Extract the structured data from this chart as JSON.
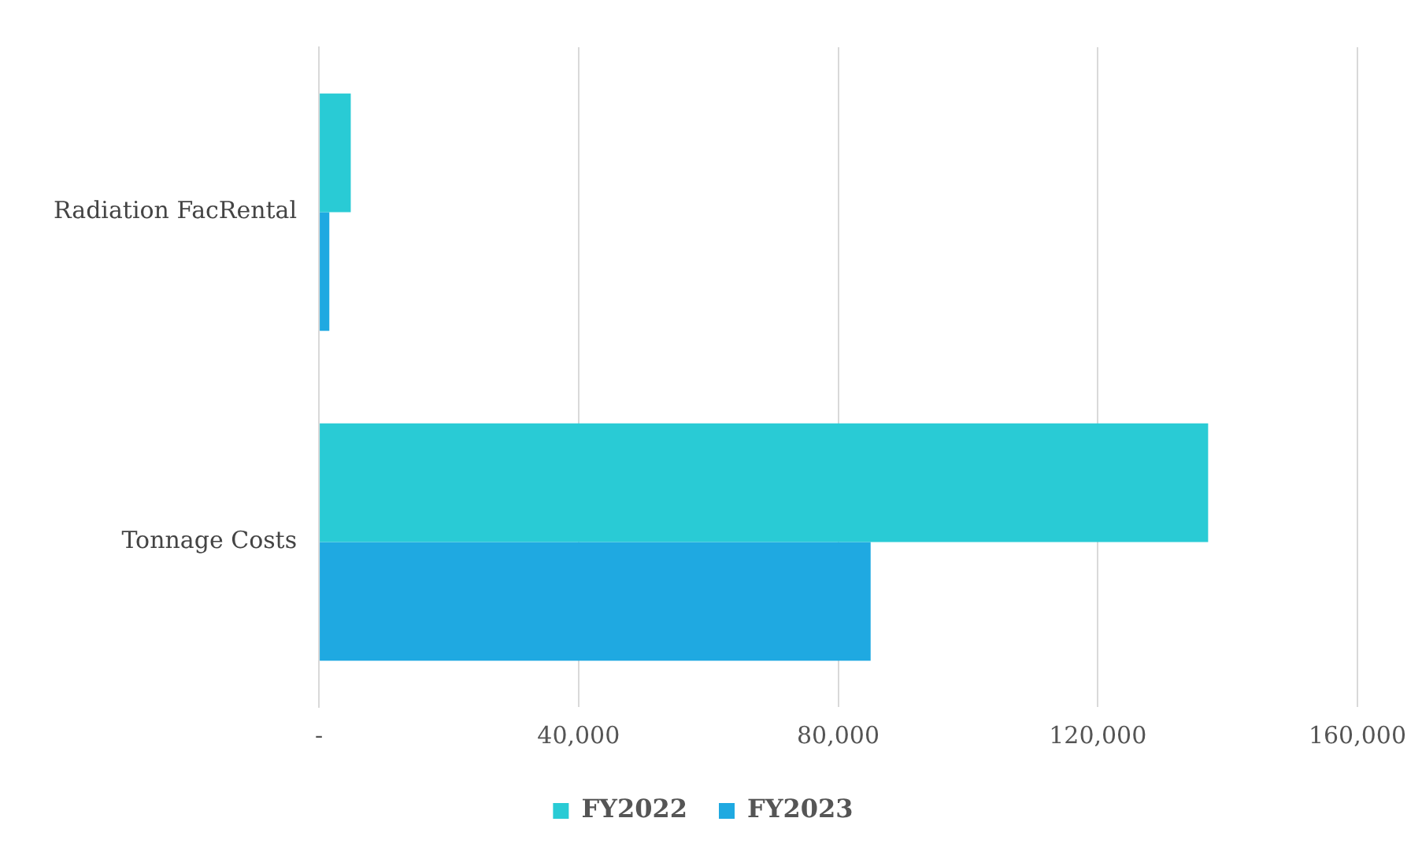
{
  "chart_data": {
    "type": "bar",
    "orientation": "horizontal",
    "categories": [
      "Radiation FacRental",
      "Tonnage Costs"
    ],
    "series": [
      {
        "name": "FY2022",
        "color": "#29cbd5",
        "values": [
          4900,
          137000
        ]
      },
      {
        "name": "FY2023",
        "color": "#1fa9e1",
        "values": [
          1600,
          85000
        ]
      }
    ],
    "xlim": [
      0,
      160000
    ],
    "xticks": [
      {
        "value": 0,
        "label": "-"
      },
      {
        "value": 40000,
        "label": "40,000"
      },
      {
        "value": 80000,
        "label": "80,000"
      },
      {
        "value": 120000,
        "label": "120,000"
      },
      {
        "value": 160000,
        "label": "160,000"
      }
    ],
    "grid": "x",
    "legend": "bottom"
  }
}
